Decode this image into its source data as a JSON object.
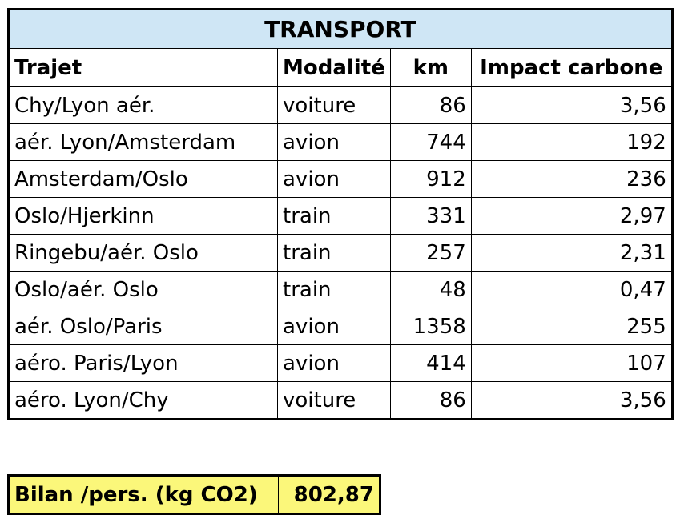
{
  "table": {
    "title": "TRANSPORT",
    "columns": [
      "Trajet",
      "Modalité",
      "km",
      "Impact carbone"
    ],
    "rows": [
      {
        "trajet": "Chy/Lyon aér.",
        "modalite": "voiture",
        "km": "86",
        "impact": "3,56"
      },
      {
        "trajet": "aér. Lyon/Amsterdam",
        "modalite": "avion",
        "km": "744",
        "impact": "192"
      },
      {
        "trajet": "Amsterdam/Oslo",
        "modalite": "avion",
        "km": "912",
        "impact": "236"
      },
      {
        "trajet": "Oslo/Hjerkinn",
        "modalite": "train",
        "km": "331",
        "impact": "2,97"
      },
      {
        "trajet": "Ringebu/aér. Oslo",
        "modalite": "train",
        "km": "257",
        "impact": "2,31"
      },
      {
        "trajet": "Oslo/aér. Oslo",
        "modalite": "train",
        "km": "48",
        "impact": "0,47"
      },
      {
        "trajet": "aér. Oslo/Paris",
        "modalite": "avion",
        "km": "1358",
        "impact": "255"
      },
      {
        "trajet": "aéro. Paris/Lyon",
        "modalite": "avion",
        "km": "414",
        "impact": "107"
      },
      {
        "trajet": "aéro. Lyon/Chy",
        "modalite": "voiture",
        "km": "86",
        "impact": "3,56"
      }
    ]
  },
  "summary": {
    "label": "Bilan /pers. (kg CO2)",
    "value": "802,87"
  },
  "colors": {
    "title_background": "#cfe6f5",
    "summary_background": "#fbf77a"
  }
}
